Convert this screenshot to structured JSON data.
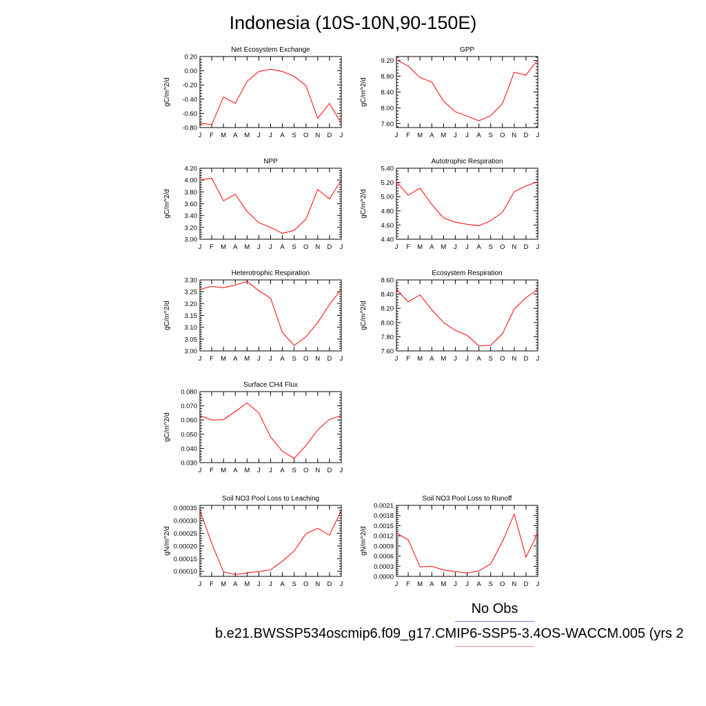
{
  "title": "Indonesia (10S-10N,90-150E)",
  "legend": {
    "obs_label": "No Obs",
    "obs_color": "#7f7fe8",
    "model_label": "b.e21.BWSSP534oscmip6.f09_g17.CMIP6-SSP5-3.4OS-WACCM.005 (yrs 2",
    "model_color": "#ec8f8f"
  },
  "line_color": "#ff0000",
  "chart_data": [
    {
      "type": "line",
      "title": "Net Ecosystem Exchange",
      "ylabel": "gC/m^2/d",
      "categories": [
        "J",
        "F",
        "M",
        "A",
        "M",
        "J",
        "J",
        "A",
        "S",
        "O",
        "N",
        "D",
        "J"
      ],
      "yticks": [
        "0.20",
        "0.00",
        "-0.20",
        "-0.40",
        "-0.60",
        "-0.80"
      ],
      "ylim": [
        -0.8,
        0.2
      ],
      "values": [
        -0.74,
        -0.76,
        -0.37,
        -0.46,
        -0.15,
        -0.01,
        0.02,
        -0.01,
        -0.08,
        -0.21,
        -0.67,
        -0.46,
        -0.74
      ]
    },
    {
      "type": "line",
      "title": "GPP",
      "ylabel": "gC/m^2/d",
      "categories": [
        "J",
        "F",
        "M",
        "A",
        "M",
        "J",
        "J",
        "A",
        "S",
        "O",
        "N",
        "D",
        "J"
      ],
      "yticks": [
        "9.20",
        "8.80",
        "8.40",
        "8.00",
        "7.60"
      ],
      "ylim": [
        7.5,
        9.3
      ],
      "values": [
        9.22,
        9.06,
        8.77,
        8.65,
        8.17,
        7.9,
        7.79,
        7.67,
        7.8,
        8.11,
        8.9,
        8.83,
        9.22
      ]
    },
    {
      "type": "line",
      "title": "NPP",
      "ylabel": "gC/m^2/d",
      "categories": [
        "J",
        "F",
        "M",
        "A",
        "M",
        "J",
        "J",
        "A",
        "S",
        "O",
        "N",
        "D",
        "J"
      ],
      "yticks": [
        "4.20",
        "4.00",
        "3.80",
        "3.60",
        "3.40",
        "3.20",
        "3.00"
      ],
      "ylim": [
        3.0,
        4.2
      ],
      "values": [
        4.0,
        4.03,
        3.65,
        3.76,
        3.47,
        3.28,
        3.2,
        3.1,
        3.15,
        3.34,
        3.84,
        3.68,
        4.0
      ]
    },
    {
      "type": "line",
      "title": "Autotrophic Respiration",
      "ylabel": "gC/m^2/d",
      "categories": [
        "J",
        "F",
        "M",
        "A",
        "M",
        "J",
        "J",
        "A",
        "S",
        "O",
        "N",
        "D",
        "J"
      ],
      "yticks": [
        "5.40",
        "5.20",
        "5.00",
        "4.80",
        "4.60",
        "4.40"
      ],
      "ylim": [
        4.4,
        5.4
      ],
      "values": [
        5.21,
        5.02,
        5.12,
        4.89,
        4.7,
        4.64,
        4.61,
        4.59,
        4.66,
        4.78,
        5.07,
        5.15,
        5.21
      ]
    },
    {
      "type": "line",
      "title": "Heterotrophic Respiration",
      "ylabel": "gC/m^2/d",
      "categories": [
        "J",
        "F",
        "M",
        "A",
        "M",
        "J",
        "J",
        "A",
        "S",
        "O",
        "N",
        "D",
        "J"
      ],
      "yticks": [
        "3.30",
        "3.25",
        "3.20",
        "3.15",
        "3.10",
        "3.05",
        "3.00"
      ],
      "ylim": [
        3.0,
        3.3
      ],
      "values": [
        3.26,
        3.273,
        3.267,
        3.278,
        3.294,
        3.254,
        3.223,
        3.078,
        3.023,
        3.06,
        3.12,
        3.196,
        3.26
      ]
    },
    {
      "type": "line",
      "title": "Ecosystem Respiration",
      "ylabel": "gC/m^2/d",
      "categories": [
        "J",
        "F",
        "M",
        "A",
        "M",
        "J",
        "J",
        "A",
        "S",
        "O",
        "N",
        "D",
        "J"
      ],
      "yticks": [
        "8.60",
        "8.40",
        "8.20",
        "8.00",
        "7.80",
        "7.60"
      ],
      "ylim": [
        7.6,
        8.6
      ],
      "values": [
        8.47,
        8.29,
        8.39,
        8.18,
        8.0,
        7.89,
        7.82,
        7.67,
        7.68,
        7.84,
        8.19,
        8.35,
        8.47
      ]
    },
    {
      "type": "line",
      "title": "Surface CH4 Flux",
      "ylabel": "gC/m^2/d",
      "categories": [
        "J",
        "F",
        "M",
        "A",
        "M",
        "J",
        "J",
        "A",
        "S",
        "O",
        "N",
        "D",
        "J"
      ],
      "yticks": [
        "0.080",
        "0.070",
        "0.060",
        "0.050",
        "0.040",
        "0.030"
      ],
      "ylim": [
        0.03,
        0.08
      ],
      "values": [
        0.063,
        0.06,
        0.0603,
        0.066,
        0.072,
        0.065,
        0.048,
        0.038,
        0.033,
        0.042,
        0.053,
        0.0605,
        0.063
      ]
    },
    {
      "type": "line",
      "title": "Soil NO3 Pool Loss to Leaching",
      "ylabel": "gN/m^2/d",
      "categories": [
        "J",
        "F",
        "M",
        "A",
        "M",
        "J",
        "J",
        "A",
        "S",
        "O",
        "N",
        "D",
        "J"
      ],
      "yticks": [
        "0.00035",
        "0.00030",
        "0.00025",
        "0.00020",
        "0.00015",
        "0.00010"
      ],
      "ylim": [
        8e-05,
        0.00036
      ],
      "values": [
        0.00034,
        0.00021,
        9.8e-05,
        8.7e-05,
        9.4e-05,
        9.9e-05,
        0.000106,
        0.00014,
        0.00018,
        0.000248,
        0.000269,
        0.000243,
        0.00034
      ]
    },
    {
      "type": "line",
      "title": "Soil NO3 Pool Loss to Runoff",
      "ylabel": "gN/m^2/d",
      "categories": [
        "J",
        "F",
        "M",
        "A",
        "M",
        "J",
        "J",
        "A",
        "S",
        "O",
        "N",
        "D",
        "J"
      ],
      "yticks": [
        "0.0021",
        "0.0018",
        "0.0015",
        "0.0012",
        "0.0009",
        "0.0006",
        "0.0003",
        "0.0000"
      ],
      "ylim": [
        0.0,
        0.0021
      ],
      "values": [
        0.00128,
        0.00108,
        0.00028,
        0.0003,
        0.00019,
        0.00014,
        0.0001,
        0.00016,
        0.00037,
        0.00103,
        0.00184,
        0.00057,
        0.00128
      ]
    }
  ]
}
